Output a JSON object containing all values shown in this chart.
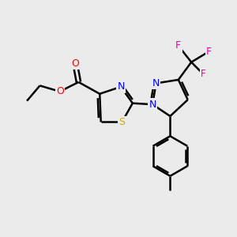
{
  "bg_color": "#ebebeb",
  "bond_color": "#000000",
  "N_color": "#0000ff",
  "O_color": "#ff0000",
  "S_color": "#ccaa00",
  "F_color": "#ee00aa",
  "line_width": 1.8,
  "figsize": [
    3.0,
    3.0
  ],
  "dpi": 100,
  "xlim": [
    0,
    10
  ],
  "ylim": [
    0,
    10
  ]
}
